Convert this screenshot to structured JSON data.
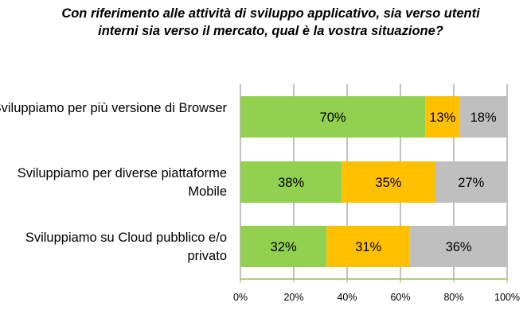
{
  "chart_data": {
    "type": "bar",
    "orientation": "horizontal",
    "stacked": "percent",
    "title": "Con riferimento alle attività di sviluppo applicativo, sia verso utenti interni sia verso il mercato, qual è la vostra situazione?",
    "categories": [
      "Sviluppiamo per più versione di Browser",
      "Sviluppiamo per diverse piattaforme Mobile",
      "Sviluppiamo su Cloud pubblico e/o privato"
    ],
    "series": [
      {
        "name": "series-1",
        "color": "#92D050",
        "values": [
          70,
          38,
          32
        ],
        "labels": [
          "70%",
          "38%",
          "32%"
        ]
      },
      {
        "name": "series-2",
        "color": "#FFC000",
        "values": [
          13,
          35,
          31
        ],
        "labels": [
          "13%",
          "35%",
          "31%"
        ]
      },
      {
        "name": "series-3",
        "color": "#BFBFBF",
        "values": [
          18,
          27,
          36
        ],
        "labels": [
          "18%",
          "27%",
          "36%"
        ]
      }
    ],
    "xlim": [
      0,
      100
    ],
    "xticks": [
      "0%",
      "20%",
      "40%",
      "60%",
      "80%",
      "100%"
    ],
    "grid": true,
    "legend": "none"
  }
}
